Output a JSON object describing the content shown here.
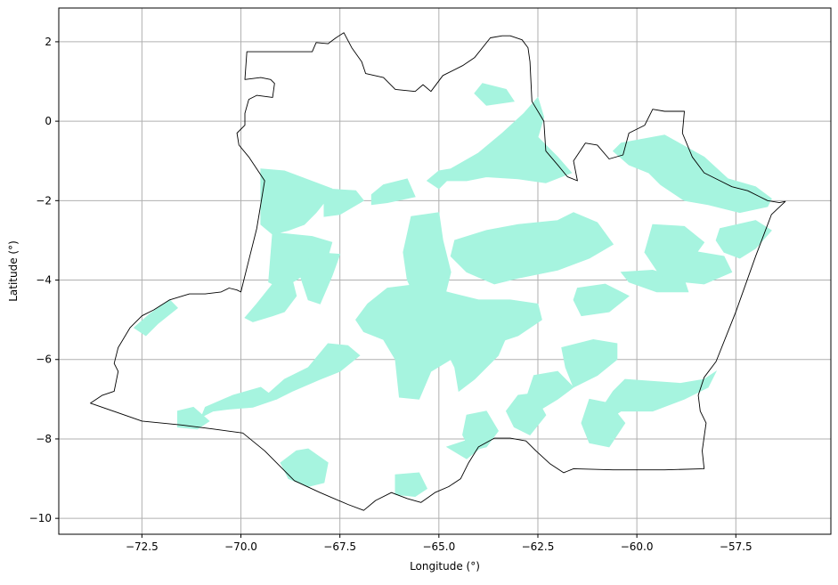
{
  "chart_data": {
    "type": "map",
    "title": "",
    "xlabel": "Longitude (°)",
    "ylabel": "Latitude (°)",
    "xlim": [
      -74.6,
      -55.1
    ],
    "ylim": [
      -10.4,
      2.85
    ],
    "grid": true,
    "x_ticks": [
      -72.5,
      -70.0,
      -67.5,
      -65.0,
      -62.5,
      -60.0,
      -57.5
    ],
    "x_tick_labels": [
      "−72.5",
      "−70.0",
      "−67.5",
      "−65.0",
      "−62.5",
      "−60.0",
      "−57.5"
    ],
    "y_ticks": [
      2,
      0,
      -2,
      -4,
      -6,
      -8,
      -10
    ],
    "y_tick_labels": [
      "2",
      "0",
      "−2",
      "−4",
      "−6",
      "−8",
      "−10"
    ],
    "colors": {
      "boundary": "#000000",
      "fill": "#a6f4df",
      "grid": "#b0b0b0"
    },
    "boundary": [
      [
        -73.8,
        -7.1
      ],
      [
        -73.5,
        -6.9
      ],
      [
        -73.2,
        -6.8
      ],
      [
        -73.1,
        -6.3
      ],
      [
        -73.2,
        -6.1
      ],
      [
        -73.1,
        -5.7
      ],
      [
        -72.8,
        -5.2
      ],
      [
        -72.5,
        -4.9
      ],
      [
        -72.2,
        -4.75
      ],
      [
        -71.8,
        -4.5
      ],
      [
        -71.3,
        -4.35
      ],
      [
        -70.9,
        -4.35
      ],
      [
        -70.5,
        -4.3
      ],
      [
        -70.3,
        -4.2
      ],
      [
        -70.1,
        -4.25
      ],
      [
        -70.0,
        -4.3
      ],
      [
        -69.95,
        -4.1
      ],
      [
        -69.8,
        -3.5
      ],
      [
        -69.6,
        -2.7
      ],
      [
        -69.4,
        -1.5
      ],
      [
        -69.6,
        -1.2
      ],
      [
        -69.8,
        -0.9
      ],
      [
        -70.05,
        -0.6
      ],
      [
        -70.1,
        -0.3
      ],
      [
        -69.9,
        -0.1
      ],
      [
        -69.9,
        0.2
      ],
      [
        -69.8,
        0.55
      ],
      [
        -69.6,
        0.65
      ],
      [
        -69.2,
        0.6
      ],
      [
        -69.15,
        0.95
      ],
      [
        -69.25,
        1.05
      ],
      [
        -69.5,
        1.1
      ],
      [
        -69.9,
        1.05
      ],
      [
        -69.85,
        1.75
      ],
      [
        -69.5,
        1.75
      ],
      [
        -68.2,
        1.75
      ],
      [
        -68.1,
        1.98
      ],
      [
        -67.8,
        1.95
      ],
      [
        -67.6,
        2.1
      ],
      [
        -67.4,
        2.23
      ],
      [
        -67.2,
        1.85
      ],
      [
        -66.95,
        1.5
      ],
      [
        -66.85,
        1.2
      ],
      [
        -66.4,
        1.1
      ],
      [
        -66.1,
        0.8
      ],
      [
        -65.6,
        0.75
      ],
      [
        -65.4,
        0.92
      ],
      [
        -65.2,
        0.75
      ],
      [
        -64.9,
        1.15
      ],
      [
        -64.4,
        1.4
      ],
      [
        -64.1,
        1.6
      ],
      [
        -63.7,
        2.1
      ],
      [
        -63.4,
        2.15
      ],
      [
        -63.2,
        2.15
      ],
      [
        -62.9,
        2.05
      ],
      [
        -62.75,
        1.85
      ],
      [
        -62.7,
        1.5
      ],
      [
        -62.65,
        0.5
      ],
      [
        -62.35,
        0.0
      ],
      [
        -62.3,
        -0.75
      ],
      [
        -62.0,
        -1.1
      ],
      [
        -61.75,
        -1.4
      ],
      [
        -61.5,
        -1.5
      ],
      [
        -61.6,
        -1.0
      ],
      [
        -61.3,
        -0.55
      ],
      [
        -61.0,
        -0.6
      ],
      [
        -60.7,
        -0.95
      ],
      [
        -60.35,
        -0.85
      ],
      [
        -60.2,
        -0.3
      ],
      [
        -59.8,
        -0.1
      ],
      [
        -59.6,
        0.3
      ],
      [
        -59.3,
        0.25
      ],
      [
        -58.8,
        0.25
      ],
      [
        -58.85,
        -0.3
      ],
      [
        -58.6,
        -0.9
      ],
      [
        -58.3,
        -1.3
      ],
      [
        -57.9,
        -1.5
      ],
      [
        -57.6,
        -1.65
      ],
      [
        -57.2,
        -1.75
      ],
      [
        -56.9,
        -1.9
      ],
      [
        -56.7,
        -2.0
      ],
      [
        -56.4,
        -2.05
      ],
      [
        -56.25,
        -2.02
      ],
      [
        -56.6,
        -2.35
      ],
      [
        -57.0,
        -3.4
      ],
      [
        -57.5,
        -4.8
      ],
      [
        -58.0,
        -6.05
      ],
      [
        -58.3,
        -6.45
      ],
      [
        -58.45,
        -6.9
      ],
      [
        -58.4,
        -7.3
      ],
      [
        -58.25,
        -7.6
      ],
      [
        -58.35,
        -8.3
      ],
      [
        -58.3,
        -8.75
      ],
      [
        -59.3,
        -8.78
      ],
      [
        -60.6,
        -8.78
      ],
      [
        -61.6,
        -8.75
      ],
      [
        -61.85,
        -8.85
      ],
      [
        -62.2,
        -8.62
      ],
      [
        -62.55,
        -8.3
      ],
      [
        -62.8,
        -8.05
      ],
      [
        -63.2,
        -7.98
      ],
      [
        -63.6,
        -7.98
      ],
      [
        -64.0,
        -8.2
      ],
      [
        -64.25,
        -8.6
      ],
      [
        -64.45,
        -9.0
      ],
      [
        -64.75,
        -9.2
      ],
      [
        -65.1,
        -9.35
      ],
      [
        -65.45,
        -9.6
      ],
      [
        -65.8,
        -9.5
      ],
      [
        -66.2,
        -9.35
      ],
      [
        -66.6,
        -9.55
      ],
      [
        -66.9,
        -9.8
      ],
      [
        -67.3,
        -9.65
      ],
      [
        -68.0,
        -9.35
      ],
      [
        -68.65,
        -9.05
      ],
      [
        -69.4,
        -8.3
      ],
      [
        -69.95,
        -7.85
      ],
      [
        -70.7,
        -7.75
      ],
      [
        -71.5,
        -7.65
      ],
      [
        -72.5,
        -7.55
      ],
      [
        -73.8,
        -7.1
      ]
    ],
    "filled_regions": [
      [
        [
          -69.5,
          -1.2
        ],
        [
          -68.9,
          -1.25
        ],
        [
          -68.1,
          -1.55
        ],
        [
          -67.7,
          -1.7
        ],
        [
          -67.9,
          -2.05
        ],
        [
          -68.1,
          -2.3
        ],
        [
          -68.4,
          -2.6
        ],
        [
          -68.8,
          -2.75
        ],
        [
          -69.2,
          -2.85
        ],
        [
          -69.5,
          -2.6
        ]
      ],
      [
        [
          -69.2,
          -2.8
        ],
        [
          -68.2,
          -2.9
        ],
        [
          -67.7,
          -3.05
        ],
        [
          -67.8,
          -3.4
        ],
        [
          -68.2,
          -3.7
        ],
        [
          -68.6,
          -4.0
        ],
        [
          -69.0,
          -4.2
        ],
        [
          -69.3,
          -4.05
        ]
      ],
      [
        [
          -67.9,
          -1.7
        ],
        [
          -67.1,
          -1.75
        ],
        [
          -66.9,
          -2.0
        ],
        [
          -67.5,
          -2.35
        ],
        [
          -67.9,
          -2.4
        ]
      ],
      [
        [
          -69.2,
          -4.1
        ],
        [
          -68.7,
          -4.0
        ],
        [
          -68.6,
          -4.4
        ],
        [
          -68.9,
          -4.8
        ],
        [
          -69.2,
          -4.9
        ],
        [
          -69.7,
          -5.05
        ],
        [
          -69.9,
          -4.95
        ],
        [
          -69.6,
          -4.6
        ]
      ],
      [
        [
          -68.2,
          -3.3
        ],
        [
          -67.5,
          -3.35
        ],
        [
          -67.7,
          -3.9
        ],
        [
          -68.0,
          -4.6
        ],
        [
          -68.3,
          -4.5
        ],
        [
          -68.5,
          -3.9
        ]
      ],
      [
        [
          -66.4,
          -1.6
        ],
        [
          -65.8,
          -1.45
        ],
        [
          -65.6,
          -1.9
        ],
        [
          -66.3,
          -2.05
        ],
        [
          -66.7,
          -2.1
        ],
        [
          -66.7,
          -1.85
        ]
      ],
      [
        [
          -65.7,
          -2.4
        ],
        [
          -65.0,
          -2.3
        ],
        [
          -64.9,
          -3.0
        ],
        [
          -64.7,
          -3.8
        ],
        [
          -64.9,
          -4.6
        ],
        [
          -65.3,
          -5.1
        ],
        [
          -65.5,
          -4.6
        ],
        [
          -65.8,
          -4.0
        ],
        [
          -65.9,
          -3.3
        ]
      ],
      [
        [
          -64.7,
          -1.2
        ],
        [
          -64.0,
          -0.8
        ],
        [
          -63.4,
          -0.3
        ],
        [
          -62.85,
          0.2
        ],
        [
          -62.5,
          0.6
        ],
        [
          -62.35,
          0.1
        ],
        [
          -62.5,
          -0.4
        ],
        [
          -62.0,
          -0.9
        ],
        [
          -61.65,
          -1.3
        ],
        [
          -62.3,
          -1.55
        ],
        [
          -63.0,
          -1.45
        ],
        [
          -63.8,
          -1.4
        ],
        [
          -64.3,
          -1.5
        ],
        [
          -64.8,
          -1.5
        ],
        [
          -65.0,
          -1.7
        ],
        [
          -65.3,
          -1.5
        ],
        [
          -65.0,
          -1.25
        ]
      ],
      [
        [
          -63.9,
          0.95
        ],
        [
          -63.3,
          0.8
        ],
        [
          -63.1,
          0.5
        ],
        [
          -63.8,
          0.4
        ],
        [
          -64.1,
          0.7
        ]
      ],
      [
        [
          -64.6,
          -3.0
        ],
        [
          -63.8,
          -2.75
        ],
        [
          -63.0,
          -2.6
        ],
        [
          -62.0,
          -2.5
        ],
        [
          -61.6,
          -2.3
        ],
        [
          -61.0,
          -2.55
        ],
        [
          -60.6,
          -3.1
        ],
        [
          -61.2,
          -3.45
        ],
        [
          -62.0,
          -3.75
        ],
        [
          -63.0,
          -3.95
        ],
        [
          -63.6,
          -4.1
        ],
        [
          -64.3,
          -3.8
        ],
        [
          -64.7,
          -3.4
        ]
      ],
      [
        [
          -66.3,
          -4.2
        ],
        [
          -65.5,
          -4.1
        ],
        [
          -64.8,
          -4.3
        ],
        [
          -64.0,
          -4.5
        ],
        [
          -63.2,
          -4.5
        ],
        [
          -62.5,
          -4.6
        ],
        [
          -62.4,
          -5.0
        ],
        [
          -63.0,
          -5.4
        ],
        [
          -63.9,
          -5.7
        ],
        [
          -64.7,
          -6.0
        ],
        [
          -65.2,
          -6.3
        ],
        [
          -65.5,
          -7.0
        ],
        [
          -66.0,
          -6.95
        ],
        [
          -66.1,
          -6.0
        ],
        [
          -66.4,
          -5.5
        ],
        [
          -66.9,
          -5.3
        ],
        [
          -67.1,
          -5.0
        ],
        [
          -66.8,
          -4.6
        ]
      ],
      [
        [
          -64.3,
          -4.7
        ],
        [
          -63.6,
          -4.75
        ],
        [
          -63.2,
          -5.2
        ],
        [
          -63.5,
          -5.9
        ],
        [
          -64.1,
          -6.5
        ],
        [
          -64.5,
          -6.8
        ],
        [
          -64.6,
          -6.2
        ],
        [
          -64.9,
          -5.6
        ]
      ],
      [
        [
          -67.8,
          -5.6
        ],
        [
          -67.3,
          -5.65
        ],
        [
          -67.0,
          -5.9
        ],
        [
          -67.5,
          -6.3
        ],
        [
          -68.0,
          -6.5
        ],
        [
          -68.7,
          -6.8
        ],
        [
          -69.1,
          -7.0
        ],
        [
          -69.3,
          -6.85
        ],
        [
          -68.9,
          -6.5
        ],
        [
          -68.3,
          -6.2
        ]
      ],
      [
        [
          -70.2,
          -6.9
        ],
        [
          -69.5,
          -6.7
        ],
        [
          -69.1,
          -7.0
        ],
        [
          -69.7,
          -7.2
        ],
        [
          -70.3,
          -7.25
        ],
        [
          -70.7,
          -7.3
        ],
        [
          -71.0,
          -7.45
        ],
        [
          -70.9,
          -7.2
        ]
      ],
      [
        [
          -72.7,
          -5.2
        ],
        [
          -72.3,
          -4.85
        ],
        [
          -71.8,
          -4.5
        ],
        [
          -71.6,
          -4.7
        ],
        [
          -72.1,
          -5.1
        ],
        [
          -72.4,
          -5.4
        ]
      ],
      [
        [
          -68.6,
          -8.3
        ],
        [
          -68.3,
          -8.25
        ],
        [
          -67.8,
          -8.6
        ],
        [
          -67.9,
          -9.1
        ],
        [
          -68.3,
          -9.2
        ],
        [
          -68.8,
          -9.0
        ],
        [
          -69.0,
          -8.6
        ]
      ],
      [
        [
          -66.1,
          -8.9
        ],
        [
          -65.5,
          -8.85
        ],
        [
          -65.3,
          -9.25
        ],
        [
          -65.6,
          -9.45
        ],
        [
          -66.1,
          -9.4
        ]
      ],
      [
        [
          -60.4,
          -0.55
        ],
        [
          -59.3,
          -0.35
        ],
        [
          -58.3,
          -0.9
        ],
        [
          -57.7,
          -1.45
        ],
        [
          -57.0,
          -1.65
        ],
        [
          -56.6,
          -1.95
        ],
        [
          -56.7,
          -2.15
        ],
        [
          -57.4,
          -2.3
        ],
        [
          -58.2,
          -2.1
        ],
        [
          -58.8,
          -2.0
        ],
        [
          -59.4,
          -1.6
        ],
        [
          -59.7,
          -1.3
        ],
        [
          -60.2,
          -1.1
        ],
        [
          -60.6,
          -0.75
        ]
      ],
      [
        [
          -57.9,
          -2.7
        ],
        [
          -57.0,
          -2.5
        ],
        [
          -56.6,
          -2.75
        ],
        [
          -57.0,
          -3.2
        ],
        [
          -57.4,
          -3.45
        ],
        [
          -57.8,
          -3.3
        ],
        [
          -58.0,
          -3.0
        ]
      ],
      [
        [
          -59.6,
          -2.6
        ],
        [
          -58.8,
          -2.65
        ],
        [
          -58.3,
          -3.05
        ],
        [
          -58.7,
          -3.6
        ],
        [
          -59.4,
          -3.9
        ],
        [
          -59.8,
          -3.3
        ]
      ],
      [
        [
          -60.4,
          -3.8
        ],
        [
          -59.6,
          -3.75
        ],
        [
          -58.8,
          -4.0
        ],
        [
          -58.7,
          -4.3
        ],
        [
          -59.5,
          -4.3
        ],
        [
          -60.2,
          -4.05
        ]
      ],
      [
        [
          -60.3,
          -6.5
        ],
        [
          -59.6,
          -6.55
        ],
        [
          -58.9,
          -6.6
        ],
        [
          -58.3,
          -6.5
        ],
        [
          -58.0,
          -6.3
        ],
        [
          -58.2,
          -6.7
        ],
        [
          -58.8,
          -7.0
        ],
        [
          -59.6,
          -7.3
        ],
        [
          -60.4,
          -7.3
        ],
        [
          -60.7,
          -7.5
        ],
        [
          -60.8,
          -7.1
        ],
        [
          -60.6,
          -6.8
        ]
      ],
      [
        [
          -61.9,
          -5.7
        ],
        [
          -61.1,
          -5.5
        ],
        [
          -60.5,
          -5.6
        ],
        [
          -60.5,
          -6.0
        ],
        [
          -61.0,
          -6.4
        ],
        [
          -61.6,
          -6.7
        ],
        [
          -61.8,
          -6.2
        ]
      ],
      [
        [
          -62.6,
          -6.4
        ],
        [
          -62.0,
          -6.3
        ],
        [
          -61.6,
          -6.7
        ],
        [
          -62.0,
          -7.0
        ],
        [
          -62.5,
          -7.3
        ],
        [
          -62.8,
          -7.0
        ]
      ],
      [
        [
          -61.2,
          -7.0
        ],
        [
          -60.7,
          -7.1
        ],
        [
          -60.3,
          -7.6
        ],
        [
          -60.7,
          -8.2
        ],
        [
          -61.2,
          -8.1
        ],
        [
          -61.4,
          -7.6
        ]
      ],
      [
        [
          -64.3,
          -7.4
        ],
        [
          -63.8,
          -7.3
        ],
        [
          -63.5,
          -7.8
        ],
        [
          -63.8,
          -8.2
        ],
        [
          -64.2,
          -8.3
        ],
        [
          -64.4,
          -7.9
        ]
      ],
      [
        [
          -63.0,
          -6.9
        ],
        [
          -62.6,
          -6.85
        ],
        [
          -62.3,
          -7.4
        ],
        [
          -62.7,
          -7.9
        ],
        [
          -63.1,
          -7.7
        ],
        [
          -63.3,
          -7.3
        ]
      ],
      [
        [
          -59.8,
          -3.3
        ],
        [
          -59.0,
          -3.2
        ],
        [
          -57.8,
          -3.4
        ],
        [
          -57.6,
          -3.8
        ],
        [
          -58.3,
          -4.1
        ],
        [
          -59.3,
          -4.0
        ]
      ],
      [
        [
          -61.5,
          -4.2
        ],
        [
          -60.8,
          -4.1
        ],
        [
          -60.2,
          -4.4
        ],
        [
          -60.7,
          -4.8
        ],
        [
          -61.4,
          -4.9
        ],
        [
          -61.6,
          -4.5
        ]
      ],
      [
        [
          -71.6,
          -7.3
        ],
        [
          -71.2,
          -7.2
        ],
        [
          -70.8,
          -7.55
        ],
        [
          -71.1,
          -7.75
        ],
        [
          -71.6,
          -7.7
        ]
      ],
      [
        [
          -64.8,
          -8.2
        ],
        [
          -64.2,
          -8.0
        ],
        [
          -63.8,
          -8.1
        ],
        [
          -64.3,
          -8.5
        ]
      ]
    ]
  }
}
